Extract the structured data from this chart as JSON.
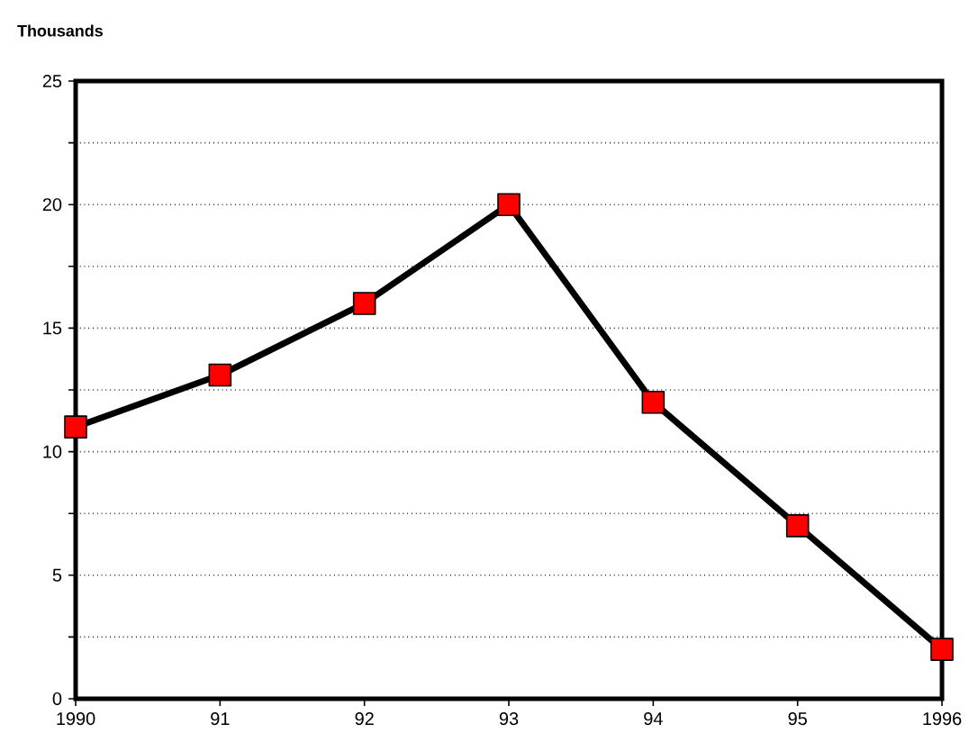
{
  "chart_data": {
    "type": "line",
    "ylabel": "Thousands",
    "x": [
      1990,
      1991,
      1992,
      1993,
      1994,
      1995,
      1996
    ],
    "series": [
      {
        "color": "#ff0000",
        "values": [
          11,
          13.1,
          16,
          20,
          12,
          7,
          2
        ]
      }
    ],
    "xlim": [
      1990,
      1996
    ],
    "xticks": [
      1990,
      {
        "value": 1991,
        "label": "91"
      },
      {
        "value": 1992,
        "label": "92"
      },
      {
        "value": 1993,
        "label": "93"
      },
      {
        "value": 1994,
        "label": "94"
      },
      {
        "value": 1995,
        "label": "95"
      },
      1996
    ],
    "ylim": [
      0,
      25
    ],
    "yticks": [
      0,
      {
        "value": 2.5,
        "label": null
      },
      5,
      {
        "value": 7.5,
        "label": null
      },
      10,
      {
        "value": 12.5,
        "label": null
      },
      15,
      {
        "value": 17.5,
        "label": null
      },
      20,
      {
        "value": 22.5,
        "label": null
      },
      25
    ],
    "grid": "y",
    "marker": "square",
    "line_style": "solid"
  }
}
